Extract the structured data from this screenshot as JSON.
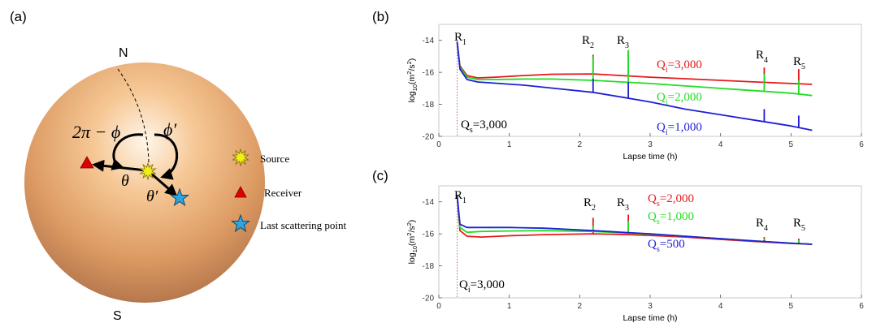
{
  "panel_labels": {
    "a": "(a)",
    "b": "(b)",
    "c": "(c)"
  },
  "globe": {
    "north": "N",
    "south": "S",
    "angle_left": "2π − ϕ",
    "angle_right": "ϕ′",
    "theta": "θ",
    "theta_prime": "θ′"
  },
  "legend": {
    "source": "Source",
    "receiver": "Receiver",
    "last_scattering": "Last scattering point"
  },
  "colors": {
    "red": "#e41a1c",
    "green": "#22dd22",
    "blue": "#1f1fd6",
    "source": "#f2ee1a",
    "receiver": "#e00000",
    "scatter": "#2aa7e0"
  },
  "chart_data": [
    {
      "type": "line",
      "panel": "(b)",
      "xlabel": "Lapse time (h)",
      "ylabel": "log10(m2/s2)",
      "xlim": [
        0,
        6
      ],
      "ylim": [
        -20,
        -13
      ],
      "xticks": [
        0,
        1,
        2,
        3,
        4,
        5,
        6
      ],
      "yticks": [
        -14,
        -16,
        -18,
        -20
      ],
      "grid": false,
      "onset_marker_x": 0.26,
      "arrivals": [
        {
          "label": "R1",
          "base": "R",
          "sub": "1",
          "x": 0.26
        },
        {
          "label": "R2",
          "base": "R",
          "sub": "2",
          "x": 2.19
        },
        {
          "label": "R3",
          "base": "R",
          "sub": "3",
          "x": 2.69
        },
        {
          "label": "R4",
          "base": "R",
          "sub": "4",
          "x": 4.62
        },
        {
          "label": "R5",
          "base": "R",
          "sub": "5",
          "x": 5.11
        }
      ],
      "fixed_label": {
        "base": "Q",
        "sub": "s",
        "value": "=3,000"
      },
      "series": [
        {
          "name": "Qi=3,000",
          "base": "Q",
          "sub": "i",
          "value": "=3,000",
          "color": "#e41a1c",
          "points": [
            [
              0.26,
              -14.1
            ],
            [
              0.3,
              -15.6
            ],
            [
              0.4,
              -16.2
            ],
            [
              0.55,
              -16.35
            ],
            [
              0.8,
              -16.3
            ],
            [
              1.2,
              -16.2
            ],
            [
              1.6,
              -16.12
            ],
            [
              2.19,
              -16.1
            ],
            [
              2.6,
              -16.2
            ],
            [
              3.0,
              -16.3
            ],
            [
              3.5,
              -16.4
            ],
            [
              4.0,
              -16.5
            ],
            [
              4.5,
              -16.6
            ],
            [
              5.0,
              -16.7
            ],
            [
              5.3,
              -16.75
            ]
          ],
          "peaks": [
            [
              0.26,
              -14.1
            ],
            [
              2.19,
              -14.9
            ],
            [
              2.69,
              -14.7
            ],
            [
              4.62,
              -15.7
            ],
            [
              5.11,
              -15.8
            ]
          ]
        },
        {
          "name": "Qi=2,000",
          "base": "Q",
          "sub": "i",
          "value": "=2,000",
          "color": "#22dd22",
          "points": [
            [
              0.26,
              -14.1
            ],
            [
              0.3,
              -15.7
            ],
            [
              0.4,
              -16.3
            ],
            [
              0.55,
              -16.45
            ],
            [
              0.8,
              -16.45
            ],
            [
              1.2,
              -16.42
            ],
            [
              1.6,
              -16.42
            ],
            [
              2.19,
              -16.5
            ],
            [
              2.6,
              -16.6
            ],
            [
              3.0,
              -16.7
            ],
            [
              3.5,
              -16.85
            ],
            [
              4.0,
              -17.0
            ],
            [
              4.5,
              -17.15
            ],
            [
              5.0,
              -17.3
            ],
            [
              5.3,
              -17.45
            ]
          ],
          "peaks": [
            [
              0.26,
              -14.1
            ],
            [
              2.19,
              -15.0
            ],
            [
              2.69,
              -14.6
            ],
            [
              4.62,
              -16.1
            ],
            [
              5.11,
              -16.5
            ]
          ]
        },
        {
          "name": "Qi=1,000",
          "base": "Q",
          "sub": "i",
          "value": "=1,000",
          "color": "#1f1fd6",
          "points": [
            [
              0.26,
              -14.1
            ],
            [
              0.3,
              -15.8
            ],
            [
              0.4,
              -16.45
            ],
            [
              0.55,
              -16.6
            ],
            [
              0.8,
              -16.68
            ],
            [
              1.2,
              -16.8
            ],
            [
              1.6,
              -16.98
            ],
            [
              2.19,
              -17.25
            ],
            [
              2.6,
              -17.55
            ],
            [
              3.0,
              -17.85
            ],
            [
              3.5,
              -18.3
            ],
            [
              4.0,
              -18.65
            ],
            [
              4.5,
              -19.0
            ],
            [
              5.0,
              -19.35
            ],
            [
              5.3,
              -19.62
            ]
          ],
          "peaks": [
            [
              0.26,
              -14.1
            ],
            [
              2.19,
              -16.4
            ],
            [
              2.69,
              -16.6
            ],
            [
              4.62,
              -18.3
            ],
            [
              5.11,
              -18.7
            ]
          ]
        }
      ]
    },
    {
      "type": "line",
      "panel": "(c)",
      "xlabel": "Lapse time (h)",
      "ylabel": "log10(m2/s2)",
      "xlim": [
        0,
        6
      ],
      "ylim": [
        -20,
        -13
      ],
      "xticks": [
        0,
        1,
        2,
        3,
        4,
        5,
        6
      ],
      "yticks": [
        -14,
        -16,
        -18,
        -20
      ],
      "grid": false,
      "onset_marker_x": 0.26,
      "arrivals": [
        {
          "label": "R1",
          "base": "R",
          "sub": "1",
          "x": 0.26
        },
        {
          "label": "R2",
          "base": "R",
          "sub": "2",
          "x": 2.19
        },
        {
          "label": "R3",
          "base": "R",
          "sub": "3",
          "x": 2.69
        },
        {
          "label": "R4",
          "base": "R",
          "sub": "4",
          "x": 4.62
        },
        {
          "label": "R5",
          "base": "R",
          "sub": "5",
          "x": 5.11
        }
      ],
      "fixed_label": {
        "base": "Q",
        "sub": "i",
        "value": "=3,000"
      },
      "series": [
        {
          "name": "Qs=2,000",
          "base": "Q",
          "sub": "s",
          "value": "=2,000",
          "color": "#e41a1c",
          "points": [
            [
              0.26,
              -13.6
            ],
            [
              0.3,
              -15.8
            ],
            [
              0.4,
              -16.15
            ],
            [
              0.6,
              -16.2
            ],
            [
              1.0,
              -16.12
            ],
            [
              1.5,
              -16.05
            ],
            [
              2.19,
              -16.0
            ],
            [
              2.69,
              -16.05
            ],
            [
              3.0,
              -16.1
            ],
            [
              3.5,
              -16.2
            ],
            [
              4.0,
              -16.35
            ],
            [
              4.5,
              -16.48
            ],
            [
              5.0,
              -16.6
            ],
            [
              5.3,
              -16.65
            ]
          ],
          "peaks": [
            [
              0.26,
              -13.6
            ],
            [
              2.19,
              -15.0
            ],
            [
              2.69,
              -14.8
            ],
            [
              4.62,
              -16.2
            ],
            [
              5.11,
              -16.3
            ]
          ]
        },
        {
          "name": "Qs=1,000",
          "base": "Q",
          "sub": "s",
          "value": "=1,000",
          "color": "#22dd22",
          "points": [
            [
              0.26,
              -13.6
            ],
            [
              0.3,
              -15.6
            ],
            [
              0.4,
              -15.9
            ],
            [
              0.6,
              -15.85
            ],
            [
              1.0,
              -15.82
            ],
            [
              1.5,
              -15.8
            ],
            [
              2.19,
              -15.85
            ],
            [
              2.69,
              -15.95
            ],
            [
              3.0,
              -16.02
            ],
            [
              3.5,
              -16.15
            ],
            [
              4.0,
              -16.3
            ],
            [
              4.5,
              -16.45
            ],
            [
              5.0,
              -16.58
            ],
            [
              5.3,
              -16.65
            ]
          ],
          "peaks": [
            [
              0.26,
              -13.6
            ],
            [
              2.19,
              -15.5
            ],
            [
              2.69,
              -15.2
            ],
            [
              4.62,
              -16.3
            ],
            [
              5.11,
              -16.4
            ]
          ]
        },
        {
          "name": "Qs=500",
          "base": "Q",
          "sub": "s",
          "value": "=500",
          "color": "#1f1fd6",
          "points": [
            [
              0.26,
              -13.6
            ],
            [
              0.3,
              -15.4
            ],
            [
              0.4,
              -15.6
            ],
            [
              0.6,
              -15.6
            ],
            [
              1.0,
              -15.6
            ],
            [
              1.5,
              -15.65
            ],
            [
              2.19,
              -15.8
            ],
            [
              2.69,
              -15.92
            ],
            [
              3.0,
              -16.0
            ],
            [
              3.5,
              -16.15
            ],
            [
              4.0,
              -16.3
            ],
            [
              4.5,
              -16.45
            ],
            [
              5.0,
              -16.58
            ],
            [
              5.3,
              -16.65
            ]
          ],
          "peaks": [
            [
              0.26,
              -13.6
            ],
            [
              2.19,
              -15.8
            ],
            [
              2.69,
              -15.9
            ],
            [
              4.62,
              -16.4
            ],
            [
              5.11,
              -16.55
            ]
          ]
        }
      ]
    }
  ]
}
